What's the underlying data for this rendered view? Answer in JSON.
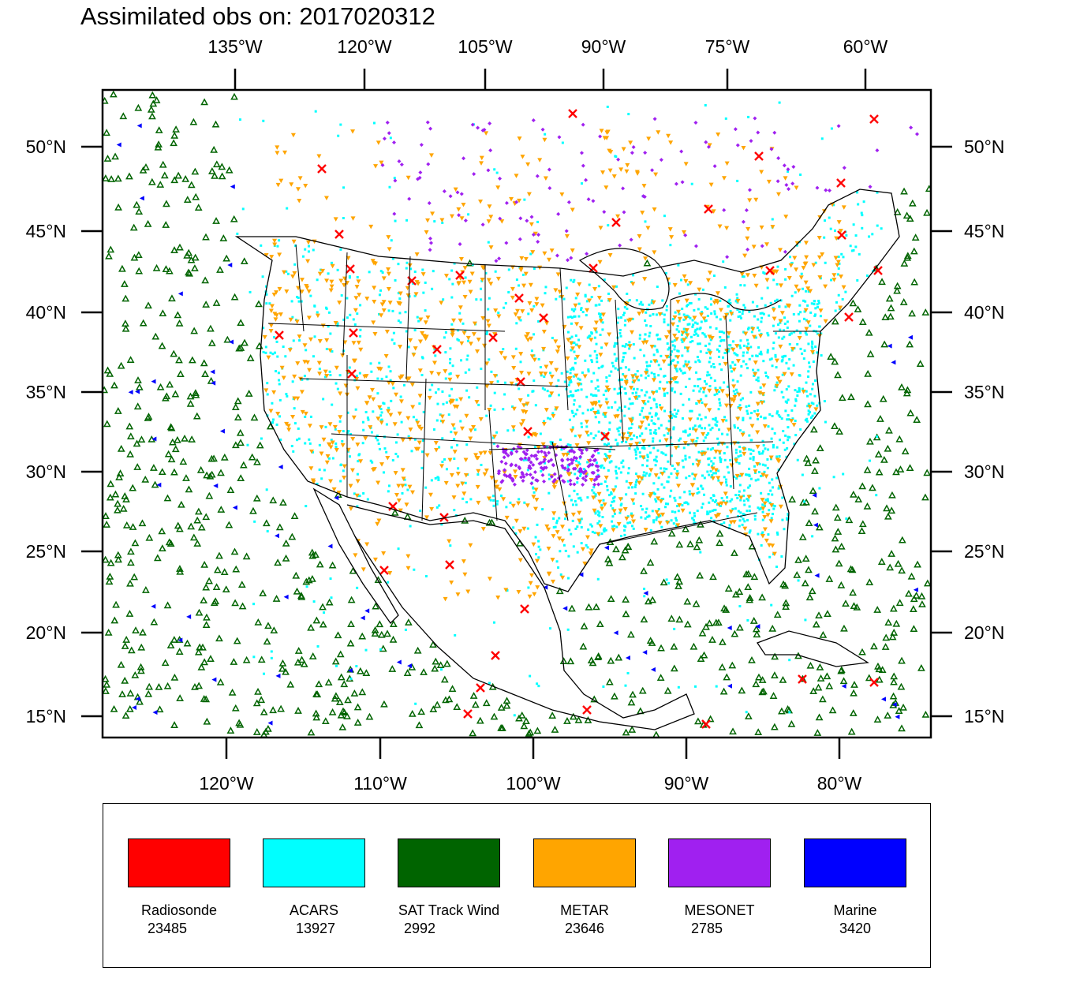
{
  "title": "Assimilated obs on: 2017020312",
  "axes": {
    "top_lon_labels": [
      "135°W",
      "120°W",
      "105°W",
      "90°W",
      "75°W",
      "60°W"
    ],
    "bottom_lon_labels": [
      "120°W",
      "110°W",
      "100°W",
      "90°W",
      "80°W"
    ],
    "lat_labels": [
      "50°N",
      "45°N",
      "40°N",
      "35°N",
      "30°N",
      "25°N",
      "20°N",
      "15°N"
    ]
  },
  "legend": [
    {
      "label": "Radiosonde",
      "count": "23485",
      "color": "#ff0000"
    },
    {
      "label": "ACARS",
      "count": "13927",
      "color": "#00ffff"
    },
    {
      "label": "SAT Track Wind",
      "count": "2992",
      "color": "#006400"
    },
    {
      "label": "METAR",
      "count": "23646",
      "color": "#ffa500"
    },
    {
      "label": "MESONET",
      "count": "2785",
      "color": "#a020f0"
    },
    {
      "label": "Marine",
      "count": "3420",
      "color": "#0000ff"
    }
  ]
}
